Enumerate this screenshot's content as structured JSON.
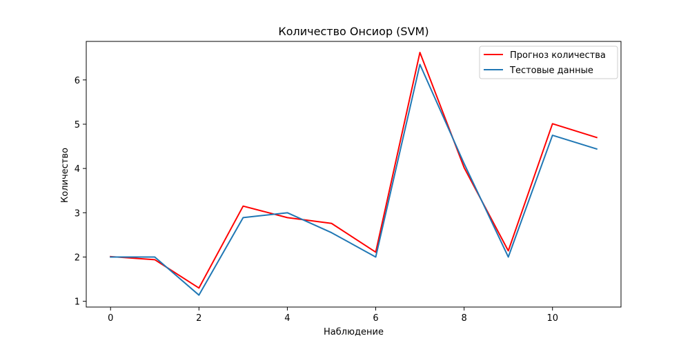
{
  "chart_data": {
    "type": "line",
    "title": "Количество Онсиор  (SVM)",
    "xlabel": "Наблюдение",
    "ylabel": "Количество",
    "x": [
      0,
      1,
      2,
      3,
      4,
      5,
      6,
      7,
      8,
      9,
      10,
      11
    ],
    "xlim": [
      -0.55,
      11.55
    ],
    "ylim": [
      0.87,
      6.87
    ],
    "xticks": [
      0,
      2,
      4,
      6,
      8,
      10
    ],
    "yticks": [
      1,
      2,
      3,
      4,
      5,
      6
    ],
    "series": [
      {
        "name": "Прогноз количества",
        "color": "#ff0000",
        "values": [
          2.01,
          1.94,
          1.3,
          3.15,
          2.89,
          2.76,
          2.11,
          6.62,
          4.02,
          2.14,
          5.01,
          4.7
        ]
      },
      {
        "name": "Тестовые данные",
        "color": "#1f77b4",
        "values": [
          2.0,
          2.0,
          1.14,
          2.89,
          3.0,
          2.55,
          2.0,
          6.35,
          4.11,
          2.0,
          4.75,
          4.44
        ]
      }
    ],
    "legend_position": "top-right",
    "grid": false
  }
}
